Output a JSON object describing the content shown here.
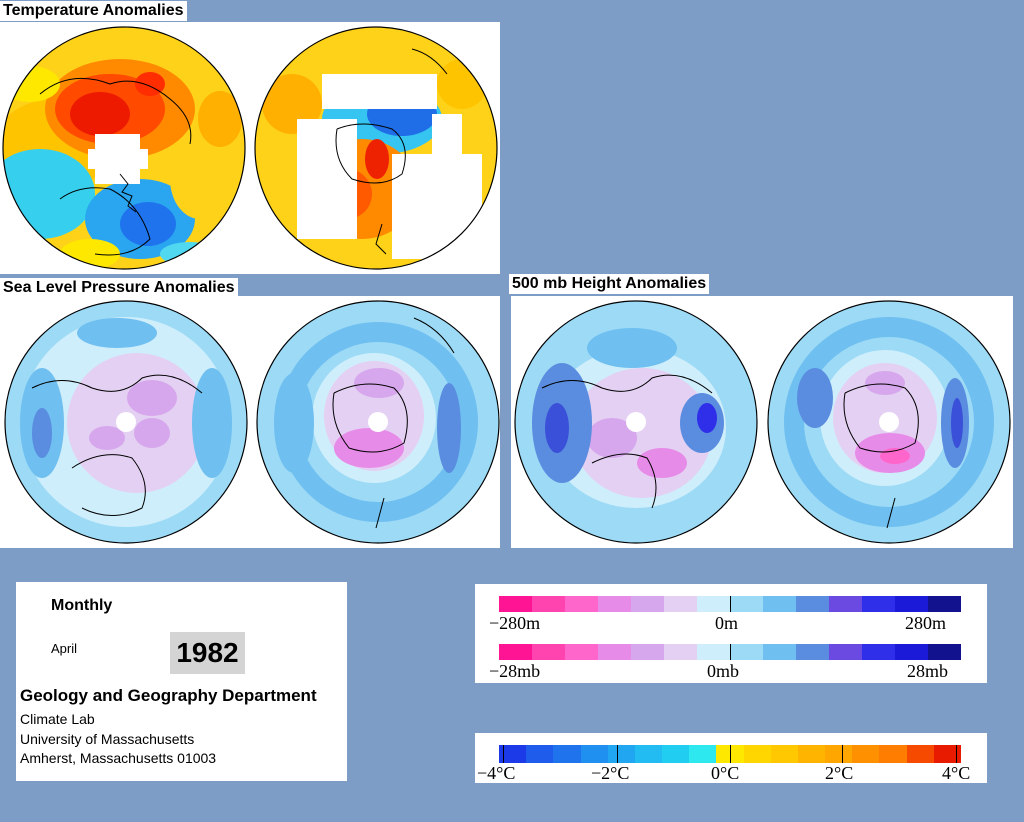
{
  "sections": {
    "temperature": "Temperature Anomalies",
    "slp": "Sea Level Pressure Anomalies",
    "height500": "500 mb Height Anomalies"
  },
  "info": {
    "period": "Monthly",
    "month": "April",
    "year": "1982",
    "department": "Geology and Geography Department",
    "lab": "Climate Lab",
    "university": "University of Massachusetts",
    "address": "Amherst, Massachusetts 01003"
  },
  "legend_height": {
    "min": "−280m",
    "mid": "0m",
    "max": "280m"
  },
  "legend_pressure": {
    "min": "−28mb",
    "mid": "0mb",
    "max": "28mb"
  },
  "legend_temp": {
    "labels": [
      "−4°C",
      "−2°C",
      "0°C",
      "2°C",
      "4°C"
    ]
  },
  "colors": {
    "background": "#7e9dc6",
    "anomaly_scale": [
      "#ff1493",
      "#ff44b0",
      "#ff66cc",
      "#e78be8",
      "#d6a7ec",
      "#e4d0f3",
      "#cfeefb",
      "#9cdaf6",
      "#6fbff0",
      "#5a8de0",
      "#6a4ae0",
      "#2f2fea",
      "#1a1ad8",
      "#12128f"
    ],
    "temp_scale": [
      "#1d3ae8",
      "#1f74ee",
      "#21a7f2",
      "#22cdf2",
      "#2ee8ef",
      "#ffe800",
      "#ffc800",
      "#ffa600",
      "#ff7d00",
      "#f54a00",
      "#e81a00"
    ]
  }
}
